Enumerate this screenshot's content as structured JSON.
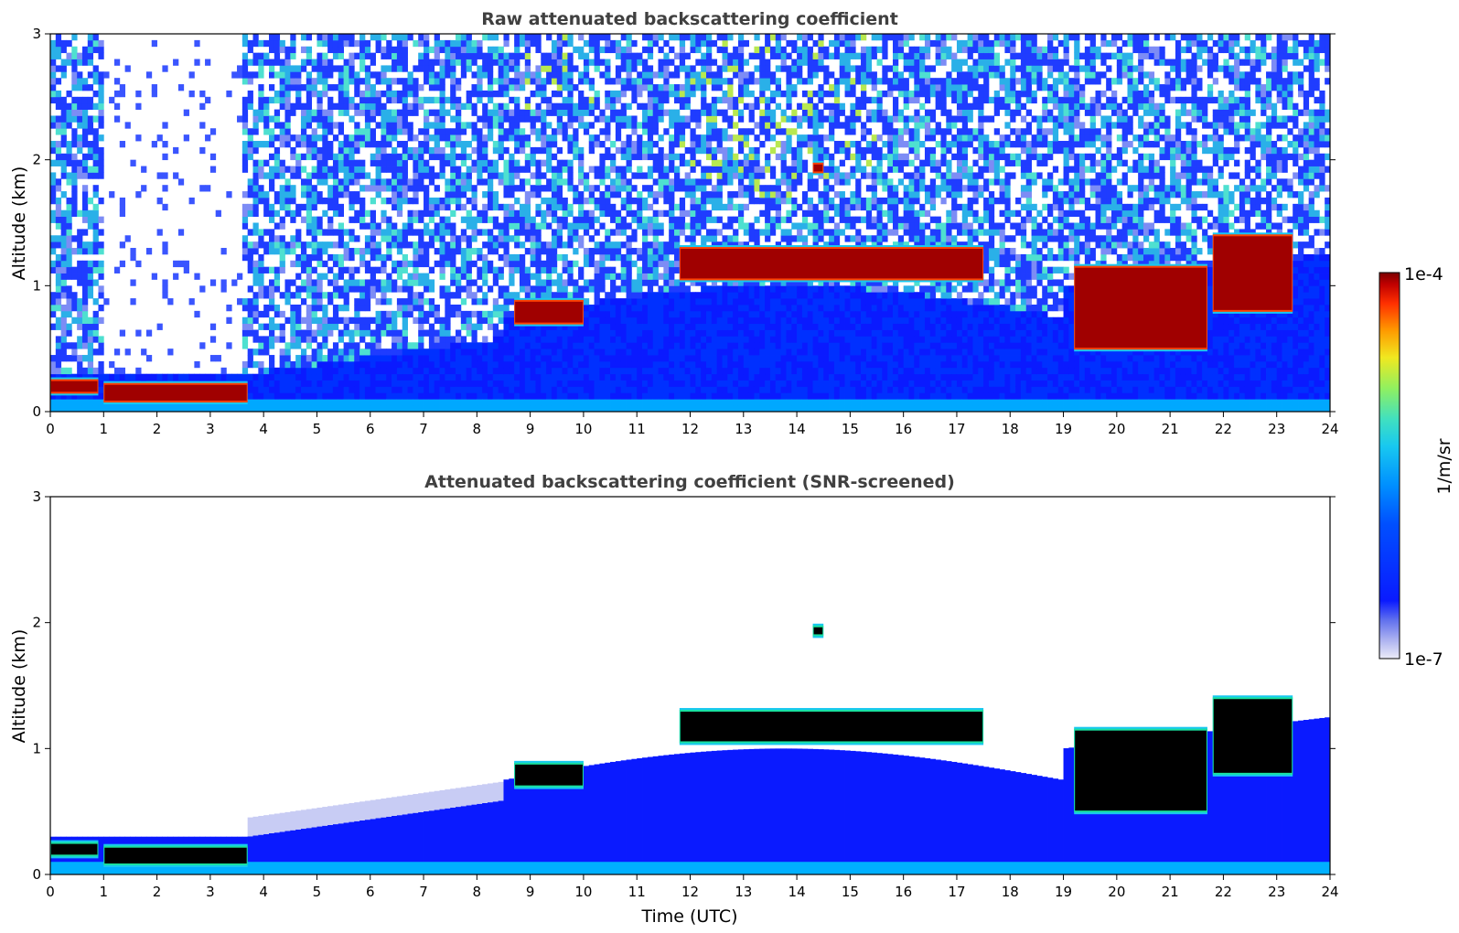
{
  "chart_data": [
    {
      "type": "heatmap",
      "title": "Raw attenuated backscattering coefficient",
      "xlabel": "",
      "ylabel": "Altitude (km)",
      "xlim": [
        0,
        24
      ],
      "ylim": [
        0,
        3
      ],
      "xticks": [
        "0",
        "1",
        "2",
        "3",
        "4",
        "5",
        "6",
        "7",
        "8",
        "9",
        "10",
        "11",
        "12",
        "13",
        "14",
        "15",
        "16",
        "17",
        "18",
        "19",
        "20",
        "21",
        "22",
        "23",
        "24"
      ],
      "yticks": [
        "0",
        "1",
        "2",
        "3"
      ],
      "screened": false,
      "layers": [
        {
          "x": [
            0,
            0.9
          ],
          "y": [
            0.15,
            0.25
          ],
          "value": "1e-4"
        },
        {
          "x": [
            1.0,
            3.7
          ],
          "y": [
            0.08,
            0.22
          ],
          "value": "1e-4"
        },
        {
          "x": [
            8.7,
            10.0
          ],
          "y": [
            0.7,
            0.88
          ],
          "value": "1e-4"
        },
        {
          "x": [
            11.8,
            17.5
          ],
          "y": [
            1.05,
            1.3
          ],
          "value": "1e-4"
        },
        {
          "x": [
            14.3,
            14.5
          ],
          "y": [
            1.9,
            1.97
          ],
          "value": "1e-4"
        },
        {
          "x": [
            19.2,
            21.7
          ],
          "y": [
            0.5,
            1.15
          ],
          "value": "1e-4"
        },
        {
          "x": [
            21.8,
            23.3
          ],
          "y": [
            0.8,
            1.4
          ],
          "value": "1e-4"
        }
      ]
    },
    {
      "type": "heatmap",
      "title": "Attenuated backscattering coefficient (SNR-screened)",
      "xlabel": "Time (UTC)",
      "ylabel": "Altitude (km)",
      "xlim": [
        0,
        24
      ],
      "ylim": [
        0,
        3
      ],
      "xticks": [
        "0",
        "1",
        "2",
        "3",
        "4",
        "5",
        "6",
        "7",
        "8",
        "9",
        "10",
        "11",
        "12",
        "13",
        "14",
        "15",
        "16",
        "17",
        "18",
        "19",
        "20",
        "21",
        "22",
        "23",
        "24"
      ],
      "yticks": [
        "0",
        "1",
        "2",
        "3"
      ],
      "screened": true,
      "layers": [
        {
          "x": [
            0,
            0.9
          ],
          "y": [
            0.15,
            0.25
          ],
          "value": "1e-4"
        },
        {
          "x": [
            1.0,
            3.7
          ],
          "y": [
            0.08,
            0.22
          ],
          "value": "1e-4"
        },
        {
          "x": [
            8.7,
            10.0
          ],
          "y": [
            0.7,
            0.88
          ],
          "value": "1e-4"
        },
        {
          "x": [
            11.8,
            17.5
          ],
          "y": [
            1.05,
            1.3
          ],
          "value": "1e-4"
        },
        {
          "x": [
            14.3,
            14.5
          ],
          "y": [
            1.9,
            1.97
          ],
          "value": "1e-4"
        },
        {
          "x": [
            19.2,
            21.7
          ],
          "y": [
            0.5,
            1.15
          ],
          "value": "1e-4"
        },
        {
          "x": [
            21.8,
            23.3
          ],
          "y": [
            0.8,
            1.4
          ],
          "value": "1e-4"
        }
      ]
    }
  ],
  "colorbar": {
    "label": "1/m/sr",
    "max_label": "1e-4",
    "min_label": "1e-7",
    "colormap": [
      "#e6e6f8",
      "#aab0f0",
      "#6070ee",
      "#0a1aff",
      "#0050ff",
      "#0090ff",
      "#18c8f0",
      "#40e0c0",
      "#90f060",
      "#f0e820",
      "#ff9a00",
      "#ff3000",
      "#c00000",
      "#7a0000"
    ]
  }
}
